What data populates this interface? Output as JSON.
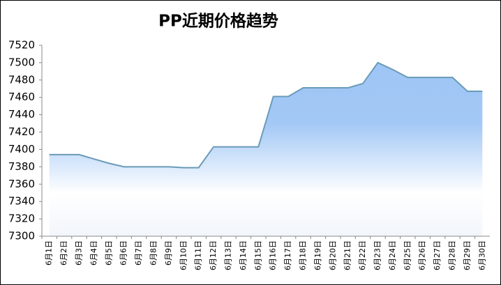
{
  "chart_data": {
    "type": "area",
    "title": "PP近期价格趋势",
    "categories": [
      "6月1日",
      "6月2日",
      "6月3日",
      "6月4日",
      "6月5日",
      "6月6日",
      "6月7日",
      "6月8日",
      "6月9日",
      "6月10日",
      "6月11日",
      "6月12日",
      "6月13日",
      "6月14日",
      "6月15日",
      "6月16日",
      "6月17日",
      "6月18日",
      "6月19日",
      "6月20日",
      "6月21日",
      "6月22日",
      "6月23日",
      "6月24日",
      "6月25日",
      "6月26日",
      "6月27日",
      "6月28日",
      "6月29日",
      "6月30日"
    ],
    "values": [
      7394,
      7394,
      7394,
      7389,
      7384,
      7380,
      7380,
      7380,
      7380,
      7379,
      7379,
      7403,
      7403,
      7403,
      7403,
      7461,
      7461,
      7471,
      7471,
      7471,
      7471,
      7476,
      7500,
      7492,
      7483,
      7483,
      7483,
      7483,
      7467,
      7467
    ],
    "color": "#6a9ab8",
    "fill_color": "#9ec5f5",
    "ylim": [
      7300,
      7520
    ],
    "yticks": [
      7300,
      7320,
      7340,
      7360,
      7380,
      7400,
      7420,
      7440,
      7460,
      7480,
      7500,
      7520
    ]
  }
}
